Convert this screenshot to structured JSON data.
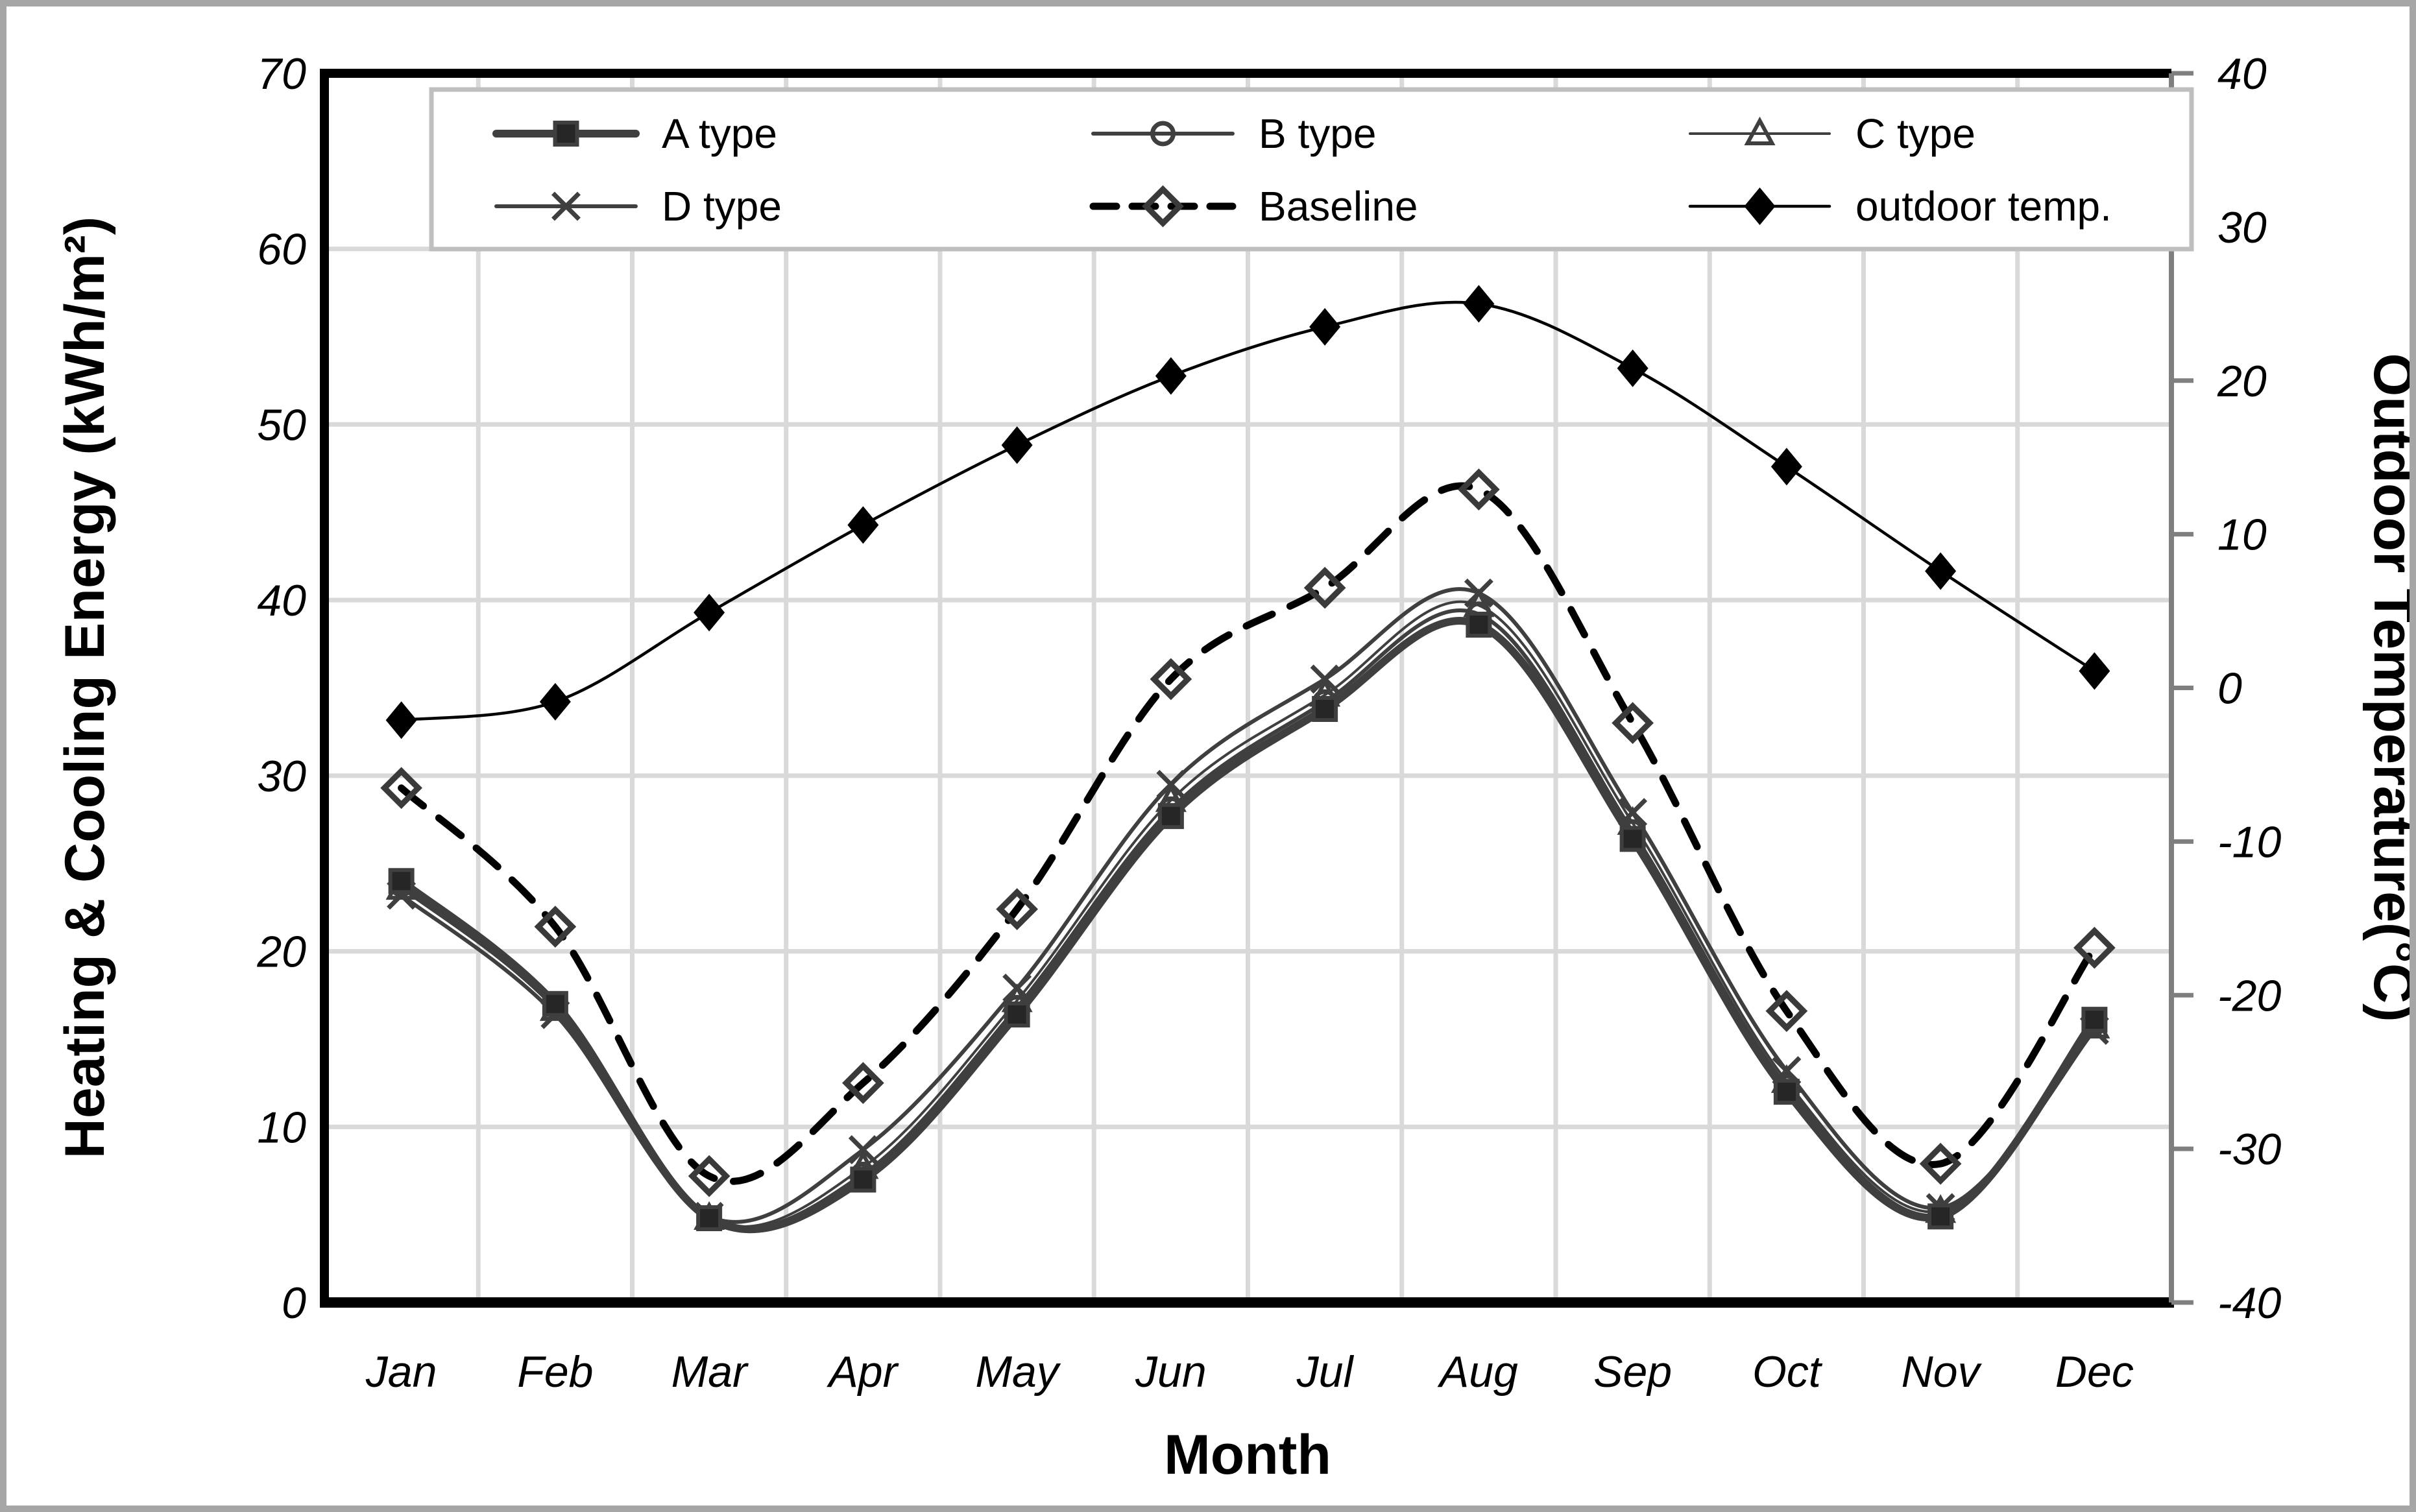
{
  "figure": {
    "background": "#ffffff",
    "border_color": "#a6a6a6"
  },
  "colors": {
    "series_gray": "#3f3f3f",
    "black": "#000000",
    "gridline": "#d9d9d9",
    "legend_border": "#bfbfbf",
    "right_spine": "#7f7f7f"
  },
  "axes": {
    "left": {
      "title": "Heating & Cooling Energy (kWh/m²)",
      "ticks": [
        0,
        10,
        20,
        30,
        40,
        50,
        60,
        70
      ],
      "range": [
        0,
        70
      ]
    },
    "right": {
      "title": "Outdoor Temperature(°C)",
      "ticks": [
        -40,
        -30,
        -20,
        -10,
        0,
        10,
        20,
        30,
        40
      ],
      "range": [
        -40,
        40
      ]
    },
    "x": {
      "title": "Month",
      "labels": [
        "Jan",
        "Feb",
        "Mar",
        "Apr",
        "May",
        "Jun",
        "Jul",
        "Aug",
        "Sep",
        "Oct",
        "Nov",
        "Dec"
      ]
    }
  },
  "legend": {
    "rows": 2,
    "columns": 3,
    "order": [
      "A type",
      "B type",
      "C type",
      "D type",
      "Baseline",
      "outdoor temp."
    ]
  },
  "chart_data": {
    "type": "line",
    "title": "",
    "xlabel": "Month",
    "ylabel_left": "Heating & Cooling Energy (kWh/m²)",
    "ylabel_right": "Outdoor Temperature(°C)",
    "ylim_left": [
      0,
      70
    ],
    "ylim_right": [
      -40,
      40
    ],
    "grid": true,
    "legend_position": "top-inside",
    "categories": [
      "Jan",
      "Feb",
      "Mar",
      "Apr",
      "May",
      "Jun",
      "Jul",
      "Aug",
      "Sep",
      "Oct",
      "Nov",
      "Dec"
    ],
    "series": [
      {
        "name": "A type",
        "axis": "left",
        "line": "solid-thick",
        "marker": "filled-square",
        "values": [
          24.0,
          17.0,
          4.8,
          7.0,
          16.4,
          27.7,
          33.8,
          38.6,
          26.4,
          12.0,
          4.9,
          16.1
        ]
      },
      {
        "name": "B type",
        "axis": "left",
        "line": "solid-medium",
        "marker": "open-circle",
        "values": [
          23.8,
          16.9,
          4.8,
          7.3,
          16.8,
          28.1,
          34.2,
          39.2,
          26.8,
          12.3,
          5.0,
          15.9
        ]
      },
      {
        "name": "C type",
        "axis": "left",
        "line": "solid-thin",
        "marker": "open-triangle",
        "values": [
          23.6,
          16.7,
          4.8,
          7.7,
          17.2,
          28.6,
          34.6,
          39.7,
          27.3,
          12.6,
          5.2,
          15.7
        ]
      },
      {
        "name": "D type",
        "axis": "left",
        "line": "solid-medium",
        "marker": "x-cross",
        "values": [
          23.2,
          16.4,
          4.9,
          8.7,
          17.9,
          29.5,
          35.5,
          40.4,
          27.9,
          13.2,
          5.4,
          15.5
        ]
      },
      {
        "name": "Baseline",
        "axis": "left",
        "line": "dashed-thick",
        "marker": "open-diamond",
        "values": [
          29.3,
          21.4,
          7.2,
          12.5,
          22.4,
          35.5,
          40.7,
          46.3,
          33.0,
          16.6,
          7.9,
          20.2
        ]
      },
      {
        "name": "outdoor temp.",
        "axis": "right",
        "line": "solid-thin-black",
        "marker": "filled-diamond",
        "values": [
          -2.1,
          -0.9,
          4.9,
          10.6,
          15.8,
          20.3,
          23.5,
          25.0,
          20.8,
          14.4,
          7.6,
          1.1
        ]
      }
    ]
  }
}
